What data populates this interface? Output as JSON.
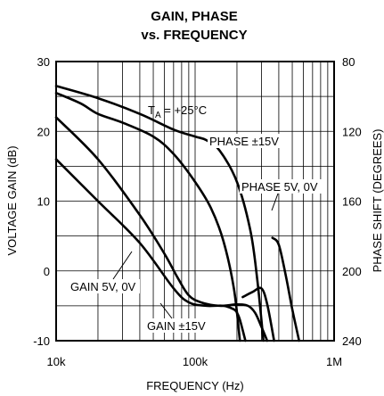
{
  "chart_data": {
    "type": "line",
    "title_lines": [
      "GAIN, PHASE",
      "vs. FREQUENCY"
    ],
    "xlabel": "FREQUENCY (Hz)",
    "ylabel_left": "VOLTAGE GAIN (dB)",
    "ylabel_right": "PHASE SHIFT (DEGREES)",
    "x_scale": "log",
    "xlim": [
      10000,
      1000000
    ],
    "ylim_left": [
      -10,
      30
    ],
    "ylim_right": [
      80,
      240
    ],
    "right_axis_inverted": true,
    "x_ticks": [
      {
        "value": 10000,
        "label": "10k"
      },
      {
        "value": 100000,
        "label": "100k"
      },
      {
        "value": 1000000,
        "label": "1M"
      }
    ],
    "y_ticks_left": [
      {
        "value": 30,
        "label": "30"
      },
      {
        "value": 20,
        "label": "20"
      },
      {
        "value": 10,
        "label": "10"
      },
      {
        "value": 0,
        "label": "0"
      },
      {
        "value": -10,
        "label": "-10"
      }
    ],
    "y_ticks_right": [
      {
        "value": 80,
        "label": "80"
      },
      {
        "value": 120,
        "label": "120"
      },
      {
        "value": 160,
        "label": "160"
      },
      {
        "value": 200,
        "label": "200"
      },
      {
        "value": 240,
        "label": "240"
      }
    ],
    "grid": true,
    "annotation": {
      "prefix": "T",
      "sub": "A",
      "suffix": " = +25°C"
    },
    "series": [
      {
        "name": "PHASE ±15V",
        "axis": "right",
        "points": [
          [
            10000,
            94
          ],
          [
            20000,
            101
          ],
          [
            40000,
            110
          ],
          [
            70000,
            119
          ],
          [
            100000,
            123
          ],
          [
            120000,
            125
          ],
          [
            150000,
            131
          ],
          [
            200000,
            149
          ],
          [
            250000,
            177
          ],
          [
            280000,
            205
          ],
          [
            310000,
            240
          ]
        ]
      },
      {
        "name": "PHASE 5V, 0V",
        "axis": "right",
        "points": [
          [
            10000,
            98
          ],
          [
            15000,
            104
          ],
          [
            20000,
            110
          ],
          [
            30000,
            115
          ],
          [
            50000,
            123
          ],
          [
            70000,
            133
          ],
          [
            100000,
            149
          ],
          [
            130000,
            164
          ],
          [
            160000,
            183
          ],
          [
            190000,
            210
          ],
          [
            210000,
            240
          ]
        ]
      },
      {
        "name": "GAIN ±15V",
        "axis": "left",
        "points": [
          [
            10000,
            22
          ],
          [
            20000,
            16
          ],
          [
            40000,
            8
          ],
          [
            60000,
            2.5
          ],
          [
            75000,
            -1
          ],
          [
            90000,
            -3.5
          ],
          [
            110000,
            -4.5
          ],
          [
            150000,
            -5
          ],
          [
            200000,
            -4.8
          ],
          [
            240000,
            -5
          ],
          [
            270000,
            -6
          ],
          [
            300000,
            -8
          ],
          [
            330000,
            -10
          ]
        ]
      },
      {
        "name": "GAIN 5V, 0V",
        "axis": "left",
        "points": [
          [
            10000,
            16
          ],
          [
            20000,
            10
          ],
          [
            40000,
            4
          ],
          [
            70000,
            -2.5
          ],
          [
            90000,
            -4.5
          ],
          [
            120000,
            -5
          ],
          [
            160000,
            -5
          ],
          [
            190000,
            -5.5
          ],
          [
            200000,
            -6
          ],
          [
            210000,
            -7
          ],
          [
            230000,
            -10
          ]
        ]
      },
      {
        "name": "PHASE ±15V",
        "axis": "right",
        "points": [
          [
            360000,
            181
          ],
          [
            400000,
            185
          ],
          [
            450000,
            203
          ],
          [
            500000,
            222
          ],
          [
            560000,
            240
          ]
        ]
      },
      {
        "name": "PHASE 5V, 0V",
        "axis": "right",
        "points": [
          [
            220000,
            215
          ],
          [
            260000,
            212
          ],
          [
            300000,
            210
          ],
          [
            330000,
            219
          ],
          [
            370000,
            240
          ]
        ]
      }
    ],
    "labels": {
      "phase_15v": "PHASE ±15V",
      "phase_5v": "PHASE 5V, 0V",
      "gain_15v": "GAIN ±15V",
      "gain_5v": "GAIN 5V, 0V"
    }
  }
}
